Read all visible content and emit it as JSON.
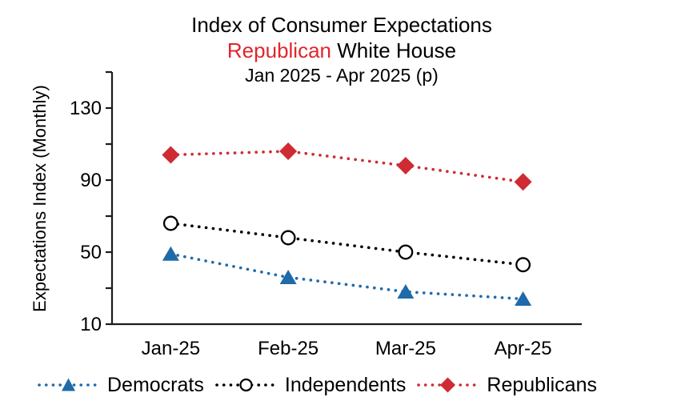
{
  "title": {
    "line1": "Index of Consumer Expectations",
    "line2_highlight": "Republican",
    "line2_rest": " White House",
    "line3": "Jan 2025 - Apr 2025 (p)"
  },
  "colors": {
    "title_highlight": "#e0262c",
    "democrats": "#1f6aa9",
    "independents": "#000000",
    "republicans": "#cf2b33",
    "axis": "#1c1c1c",
    "background": "#ffffff"
  },
  "chart_data": {
    "type": "line",
    "categories": [
      "Jan-25",
      "Feb-25",
      "Mar-25",
      "Apr-25"
    ],
    "series": [
      {
        "name": "Democrats",
        "marker": "triangle",
        "color": "#1f6aa9",
        "values": [
          49,
          36,
          28,
          24
        ]
      },
      {
        "name": "Independents",
        "marker": "circle-open",
        "color": "#000000",
        "values": [
          66,
          58,
          50,
          43
        ]
      },
      {
        "name": "Republicans",
        "marker": "diamond",
        "color": "#cf2b33",
        "values": [
          104,
          106,
          98,
          89
        ]
      }
    ],
    "title": "Index of Consumer Expectations Republican White House Jan 2025 - Apr 2025 (p)",
    "xlabel": "",
    "ylabel": "Expectations Index (Monthly)",
    "ylim": [
      10,
      150
    ],
    "yticks_labeled": [
      10,
      50,
      90,
      130
    ],
    "yticks_minor": [
      30,
      70,
      110,
      150
    ],
    "line_style": "dotted",
    "grid": false,
    "legend_position": "bottom"
  }
}
